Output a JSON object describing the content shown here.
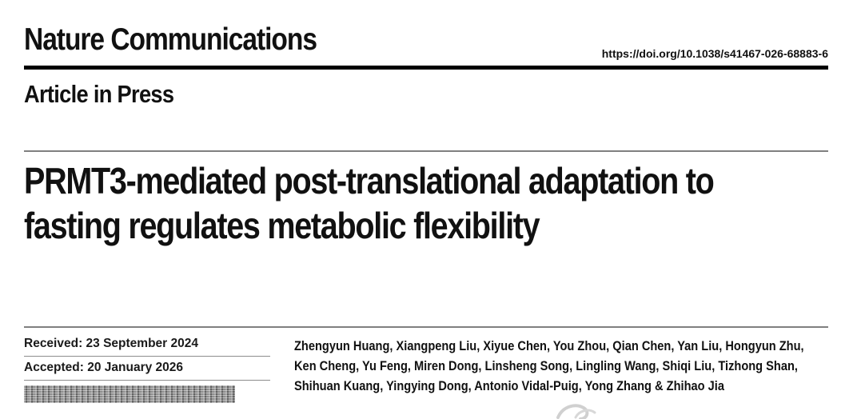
{
  "header": {
    "journal": "Nature Communications",
    "doi": "https://doi.org/10.1038/s41467-026-68883-6",
    "status": "Article in Press"
  },
  "article": {
    "title": "PRMT3-mediated post-translational adaptation to fasting regulates metabolic flexibility",
    "received": "Received: 23 September 2024",
    "accepted": "Accepted: 20 January 2026",
    "authors": "Zhengyun Huang, Xiangpeng Liu, Xiyue Chen, You Zhou, Qian Chen, Yan Liu, Hongyun Zhu, Ken Cheng, Yu Feng, Miren Dong, Linsheng Song, Lingling Wang, Shiqi Liu, Tizhong Shan, Shihuan Kuang, Yingying Dong, Antonio Vidal-Puig, Yong Zhang & Zhihao Jia"
  },
  "colors": {
    "text": "#111111",
    "rule_thick": "#000000",
    "rule_gray": "#808080",
    "redaction": "#8f8f8f"
  },
  "icons": {
    "watermark": "watermark-logo-icon"
  }
}
